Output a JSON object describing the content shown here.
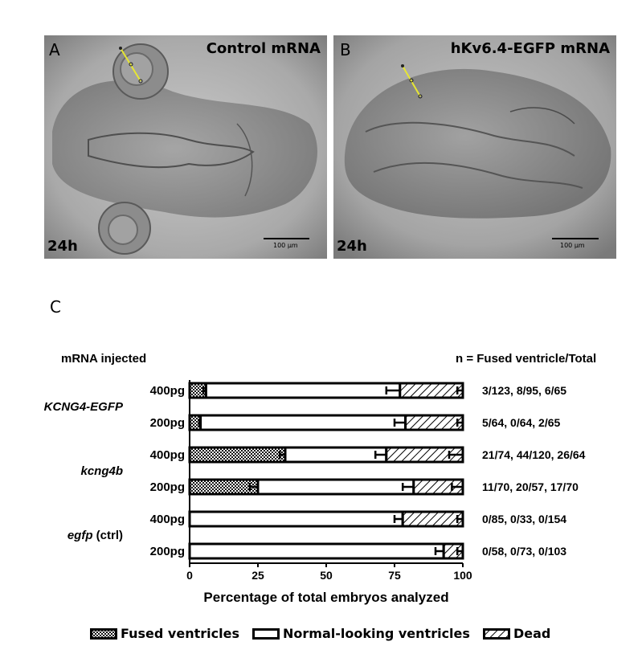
{
  "panels": [
    {
      "letter": "A",
      "title": "Control mRNA",
      "time": "24h",
      "scale_label": "100 µm"
    },
    {
      "letter": "B",
      "title": "hKv6.4-EGFP mRNA",
      "time": "24h",
      "scale_label": "100 µm"
    }
  ],
  "panel_c_letter": "C",
  "chart_data": {
    "type": "bar",
    "orientation": "horizontal",
    "stacked": true,
    "group_header": "mRNA injected",
    "n_header": "n = Fused ventricle/Total",
    "xlabel": "Percentage of total embryos analyzed",
    "xlim": [
      0,
      100
    ],
    "xticks": [
      "0",
      "25",
      "50",
      "75",
      "100"
    ],
    "groups": [
      {
        "name": "KCNG4-EGFP",
        "italic": true,
        "suffix": ""
      },
      {
        "name": "kcng4b",
        "italic": true,
        "suffix": ""
      },
      {
        "name": "egfp",
        "italic": true,
        "suffix": " (ctrl)"
      }
    ],
    "categories": [
      "400pg",
      "200pg",
      "400pg",
      "200pg",
      "400pg",
      "200pg"
    ],
    "row_groups": [
      0,
      0,
      1,
      1,
      2,
      2
    ],
    "series": [
      {
        "name": "Fused ventricles",
        "pattern": "checker",
        "values": [
          6,
          4,
          35,
          25,
          0,
          0
        ],
        "err": [
          1,
          0.5,
          2,
          3,
          0,
          0
        ]
      },
      {
        "name": "Normal-looking ventricles",
        "pattern": "white",
        "values": [
          71,
          75,
          37,
          57,
          78,
          93
        ],
        "err": [
          5,
          4,
          4,
          4,
          3,
          3
        ]
      },
      {
        "name": "Dead",
        "pattern": "hatch",
        "values": [
          23,
          21,
          28,
          18,
          22,
          7
        ],
        "err": [
          2,
          2,
          5,
          4,
          2,
          2
        ]
      }
    ],
    "n_values": [
      "3/123, 8/95, 6/65",
      "5/64, 0/64, 2/65",
      "21/74, 44/120, 26/64",
      "11/70, 20/57, 17/70",
      "0/85, 0/33, 0/154",
      "0/58, 0/73, 0/103"
    ]
  },
  "legend": [
    {
      "label": "Fused ventricles",
      "pattern": "checker"
    },
    {
      "label": "Normal-looking ventricles",
      "pattern": "white"
    },
    {
      "label": "Dead",
      "pattern": "hatch"
    }
  ]
}
